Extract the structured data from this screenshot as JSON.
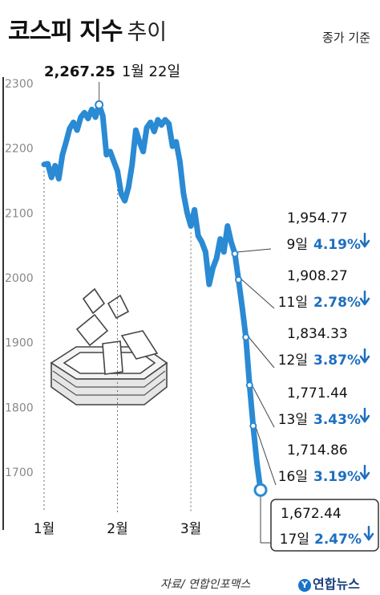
{
  "header": {
    "title_bold": "코스피 지수",
    "title_light": "추이",
    "subtitle": "종가 기준"
  },
  "footer": {
    "source": "자료/ 연합인포맥스",
    "logo": "연합뉴스",
    "logo_mark": "Y"
  },
  "colors": {
    "line": "#2a8ad4",
    "arrow": "#1e6fc0",
    "percent": "#1e6fc0",
    "grid_text": "#888888",
    "text": "#111111"
  },
  "chart_data": {
    "type": "line",
    "title": "코스피 지수 추이",
    "subtitle": "종가 기준",
    "ylim": [
      1650,
      2340
    ],
    "yticks": [
      2300,
      2200,
      2100,
      2000,
      1900,
      1800,
      1700
    ],
    "month_labels": [
      {
        "label": "1월",
        "index": 0
      },
      {
        "label": "2월",
        "index": 20
      },
      {
        "label": "3월",
        "index": 40
      }
    ],
    "values": [
      2175,
      2176,
      2155,
      2173,
      2153,
      2190,
      2210,
      2231,
      2240,
      2228,
      2248,
      2255,
      2246,
      2260,
      2248,
      2267.25,
      2250,
      2190,
      2195,
      2180,
      2165,
      2130,
      2119,
      2140,
      2175,
      2228,
      2210,
      2195,
      2232,
      2240,
      2226,
      2244,
      2236,
      2244,
      2238,
      2203,
      2210,
      2180,
      2130,
      2100,
      2080,
      2105,
      2065,
      2055,
      2040,
      1990,
      2015,
      2030,
      2060,
      2040,
      2080,
      2055,
      2037.2,
      1997,
      1954.77,
      1908.27,
      1834.33,
      1771.44,
      1714.86,
      1672.44
    ],
    "peak": {
      "index": 15,
      "value": "2,267.25",
      "date": "1월 22일"
    },
    "annotations": [
      {
        "index": 52,
        "value": "1,954.77",
        "day": "9일",
        "change": "4.19%"
      },
      {
        "index": 53,
        "value": "1,908.27",
        "day": "11일",
        "change": "2.78%"
      },
      {
        "index": 55,
        "value": "1,834.33",
        "day": "12일",
        "change": "3.87%"
      },
      {
        "index": 56,
        "value": "1,771.44",
        "day": "13일",
        "change": "3.43%"
      },
      {
        "index": 57,
        "value": "1,714.86",
        "day": "16일",
        "change": "3.19%"
      },
      {
        "index": 59,
        "value": "1,672.44",
        "day": "17일",
        "change": "2.47%"
      }
    ]
  }
}
